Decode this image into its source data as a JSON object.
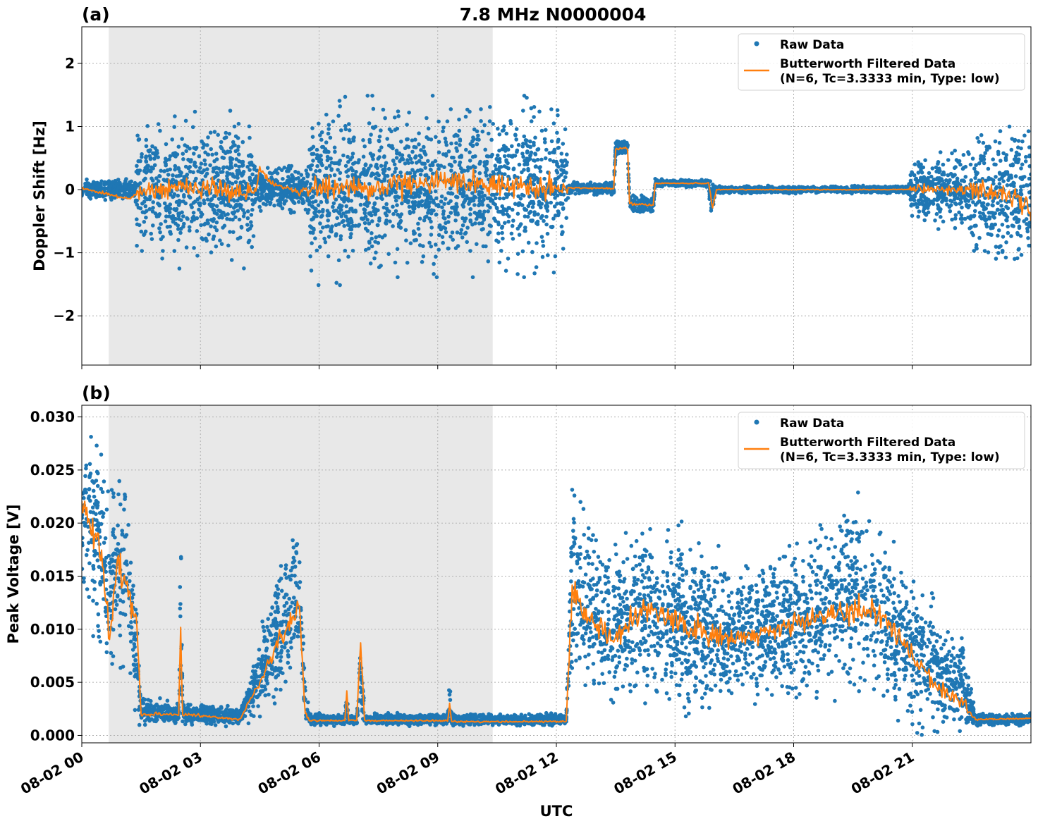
{
  "chart_data": [
    {
      "type": "scatter",
      "panel_label": "(a)",
      "title": "7.8 MHz N0000004",
      "xlabel": "",
      "ylabel": "Doppler Shift [Hz]",
      "xlim_hours": [
        0,
        24
      ],
      "ylim": [
        -2.78,
        2.58
      ],
      "xticks": [
        "08-02 00",
        "08-02 03",
        "08-02 06",
        "08-02 09",
        "08-02 12",
        "08-02 15",
        "08-02 18",
        "08-02 21"
      ],
      "xtick_hours": [
        0,
        3,
        6,
        9,
        12,
        15,
        18,
        21
      ],
      "yticks": [
        -2,
        -1,
        0,
        1,
        2
      ],
      "ytick_labels": [
        "−2",
        "−1",
        "0",
        "1",
        "2"
      ],
      "grid": true,
      "shaded_interval_hours": [
        0.68,
        10.39
      ],
      "shade_color": "#e8e8e8",
      "legend": {
        "placement": "top-right",
        "entries": [
          "Raw Data",
          "Butterworth Filtered Data",
          "(N=6, Tc=3.3333 min, Type: low)"
        ]
      },
      "series": [
        {
          "name": "Raw Data",
          "color": "#1f77b4",
          "kind": "points",
          "envelope_columns": [
            "hour",
            "low",
            "high"
          ],
          "envelope": [
            [
              0,
              -0.15,
              0.15
            ],
            [
              1.35,
              -0.15,
              0.15
            ],
            [
              1.4,
              -1.0,
              1.0
            ],
            [
              4.3,
              -1.0,
              1.0
            ],
            [
              4.4,
              -0.25,
              0.35
            ],
            [
              5.0,
              -0.3,
              0.3
            ],
            [
              5.7,
              -0.3,
              0.3
            ],
            [
              5.75,
              -1.2,
              1.3
            ],
            [
              6.9,
              -1.2,
              1.3
            ],
            [
              6.95,
              -0.1,
              0.1
            ],
            [
              7.0,
              -1.1,
              1.2
            ],
            [
              12.25,
              -1.1,
              1.2
            ],
            [
              12.3,
              -0.08,
              0.1
            ],
            [
              13.45,
              -0.08,
              0.1
            ],
            [
              13.5,
              0.55,
              0.8
            ],
            [
              13.8,
              0.55,
              0.8
            ],
            [
              13.85,
              -0.35,
              -0.12
            ],
            [
              14.45,
              -0.35,
              -0.12
            ],
            [
              14.5,
              0.05,
              0.16
            ],
            [
              15.85,
              0.05,
              0.16
            ],
            [
              15.9,
              -0.5,
              0.1
            ],
            [
              16.05,
              -0.05,
              0.05
            ],
            [
              20.9,
              -0.05,
              0.05
            ],
            [
              21.0,
              -0.5,
              0.5
            ],
            [
              22.4,
              -0.5,
              0.5
            ],
            [
              22.5,
              -1.1,
              0.95
            ],
            [
              24,
              -1.1,
              0.95
            ]
          ]
        },
        {
          "name": "Butterworth Filtered Data",
          "color": "#ff7f0e",
          "kind": "line",
          "points": [
            [
              0,
              0.02
            ],
            [
              1.2,
              -0.15
            ],
            [
              1.5,
              0.0
            ],
            [
              3.0,
              0.05
            ],
            [
              4.4,
              -0.05
            ],
            [
              4.5,
              0.35
            ],
            [
              4.8,
              0.1
            ],
            [
              5.5,
              -0.05
            ],
            [
              6.0,
              0.1
            ],
            [
              7.0,
              0.0
            ],
            [
              9.0,
              0.15
            ],
            [
              12.2,
              0.0
            ],
            [
              12.3,
              0.03
            ],
            [
              13.45,
              0.02
            ],
            [
              13.5,
              0.65
            ],
            [
              13.8,
              0.65
            ],
            [
              13.85,
              -0.22
            ],
            [
              14.45,
              -0.25
            ],
            [
              14.5,
              0.1
            ],
            [
              15.85,
              0.1
            ],
            [
              15.95,
              -0.3
            ],
            [
              16.05,
              0.0
            ],
            [
              21.0,
              0.0
            ],
            [
              22.5,
              0.0
            ],
            [
              23.5,
              -0.1
            ],
            [
              24,
              -0.3
            ]
          ]
        }
      ]
    },
    {
      "type": "scatter",
      "panel_label": "(b)",
      "xlabel": "UTC",
      "ylabel": "Peak Voltage [V]",
      "xlim_hours": [
        0,
        24
      ],
      "ylim": [
        -0.0007,
        0.0311
      ],
      "xticks": [
        "08-02 00",
        "08-02 03",
        "08-02 06",
        "08-02 09",
        "08-02 12",
        "08-02 15",
        "08-02 18",
        "08-02 21"
      ],
      "xtick_hours": [
        0,
        3,
        6,
        9,
        12,
        15,
        18,
        21
      ],
      "yticks": [
        0,
        0.005,
        0.01,
        0.015,
        0.02,
        0.025,
        0.03
      ],
      "ytick_labels": [
        "0.000",
        "0.005",
        "0.010",
        "0.015",
        "0.020",
        "0.025",
        "0.030"
      ],
      "grid": true,
      "shaded_interval_hours": [
        0.68,
        10.39
      ],
      "shade_color": "#e8e8e8",
      "legend": {
        "placement": "top-right",
        "entries": [
          "Raw Data",
          "Butterworth Filtered Data",
          "(N=6, Tc=3.3333 min, Type: low)"
        ]
      },
      "series": [
        {
          "name": "Raw Data",
          "color": "#1f77b4",
          "kind": "points",
          "envelope_columns": [
            "hour",
            "low",
            "high"
          ],
          "envelope": [
            [
              0,
              0.012,
              0.029
            ],
            [
              0.5,
              0.008,
              0.028
            ],
            [
              0.7,
              0.003,
              0.02
            ],
            [
              0.9,
              0.008,
              0.026
            ],
            [
              1.2,
              0.005,
              0.02
            ],
            [
              1.4,
              0.001,
              0.012
            ],
            [
              1.5,
              0.0012,
              0.0035
            ],
            [
              2.45,
              0.0012,
              0.003
            ],
            [
              2.5,
              0.001,
              0.024
            ],
            [
              2.55,
              0.0012,
              0.003
            ],
            [
              4.0,
              0.001,
              0.0025
            ],
            [
              4.5,
              0.002,
              0.009
            ],
            [
              5.0,
              0.004,
              0.015
            ],
            [
              5.5,
              0.006,
              0.02
            ],
            [
              5.65,
              0.001,
              0.006
            ],
            [
              5.75,
              0.001,
              0.002
            ],
            [
              6.65,
              0.001,
              0.002
            ],
            [
              6.7,
              0.001,
              0.005
            ],
            [
              6.75,
              0.001,
              0.002
            ],
            [
              6.95,
              0.001,
              0.002
            ],
            [
              7.05,
              0.002,
              0.0095
            ],
            [
              7.15,
              0.001,
              0.002
            ],
            [
              9.25,
              0.001,
              0.002
            ],
            [
              9.3,
              0.001,
              0.0065
            ],
            [
              9.35,
              0.001,
              0.002
            ],
            [
              12.25,
              0.001,
              0.002
            ],
            [
              12.4,
              0.004,
              0.024
            ],
            [
              12.7,
              0.005,
              0.02
            ],
            [
              13.5,
              0.003,
              0.017
            ],
            [
              14.2,
              0.004,
              0.02
            ],
            [
              15.5,
              0.003,
              0.018
            ],
            [
              16.5,
              0.003,
              0.015
            ],
            [
              17.5,
              0.004,
              0.017
            ],
            [
              18.5,
              0.004,
              0.018
            ],
            [
              19.5,
              0.005,
              0.022
            ],
            [
              20.0,
              0.004,
              0.02
            ],
            [
              20.5,
              0.003,
              0.017
            ],
            [
              21.5,
              0.001,
              0.012
            ],
            [
              22.3,
              0.001,
              0.008
            ],
            [
              22.6,
              0.001,
              0.002
            ],
            [
              24,
              0.001,
              0.002
            ]
          ]
        },
        {
          "name": "Butterworth Filtered Data",
          "color": "#ff7f0e",
          "kind": "line",
          "points": [
            [
              0,
              0.022
            ],
            [
              0.5,
              0.017
            ],
            [
              0.7,
              0.009
            ],
            [
              0.9,
              0.017
            ],
            [
              1.2,
              0.013
            ],
            [
              1.4,
              0.01
            ],
            [
              1.5,
              0.002
            ],
            [
              2.45,
              0.002
            ],
            [
              2.5,
              0.0095
            ],
            [
              2.55,
              0.002
            ],
            [
              4.0,
              0.0015
            ],
            [
              4.5,
              0.005
            ],
            [
              5.0,
              0.009
            ],
            [
              5.5,
              0.012
            ],
            [
              5.65,
              0.002
            ],
            [
              5.75,
              0.0014
            ],
            [
              6.65,
              0.0014
            ],
            [
              6.7,
              0.004
            ],
            [
              6.75,
              0.0014
            ],
            [
              6.95,
              0.0014
            ],
            [
              7.05,
              0.009
            ],
            [
              7.15,
              0.0014
            ],
            [
              9.25,
              0.0014
            ],
            [
              9.3,
              0.003
            ],
            [
              9.35,
              0.0013
            ],
            [
              12.25,
              0.0013
            ],
            [
              12.4,
              0.014
            ],
            [
              12.7,
              0.011
            ],
            [
              13.5,
              0.009
            ],
            [
              14.2,
              0.012
            ],
            [
              15.5,
              0.01
            ],
            [
              16.5,
              0.009
            ],
            [
              17.5,
              0.01
            ],
            [
              18.5,
              0.011
            ],
            [
              19.5,
              0.012
            ],
            [
              20.0,
              0.012
            ],
            [
              20.5,
              0.01
            ],
            [
              21.5,
              0.005
            ],
            [
              22.3,
              0.003
            ],
            [
              22.6,
              0.0015
            ],
            [
              24,
              0.0016
            ]
          ]
        }
      ]
    }
  ]
}
